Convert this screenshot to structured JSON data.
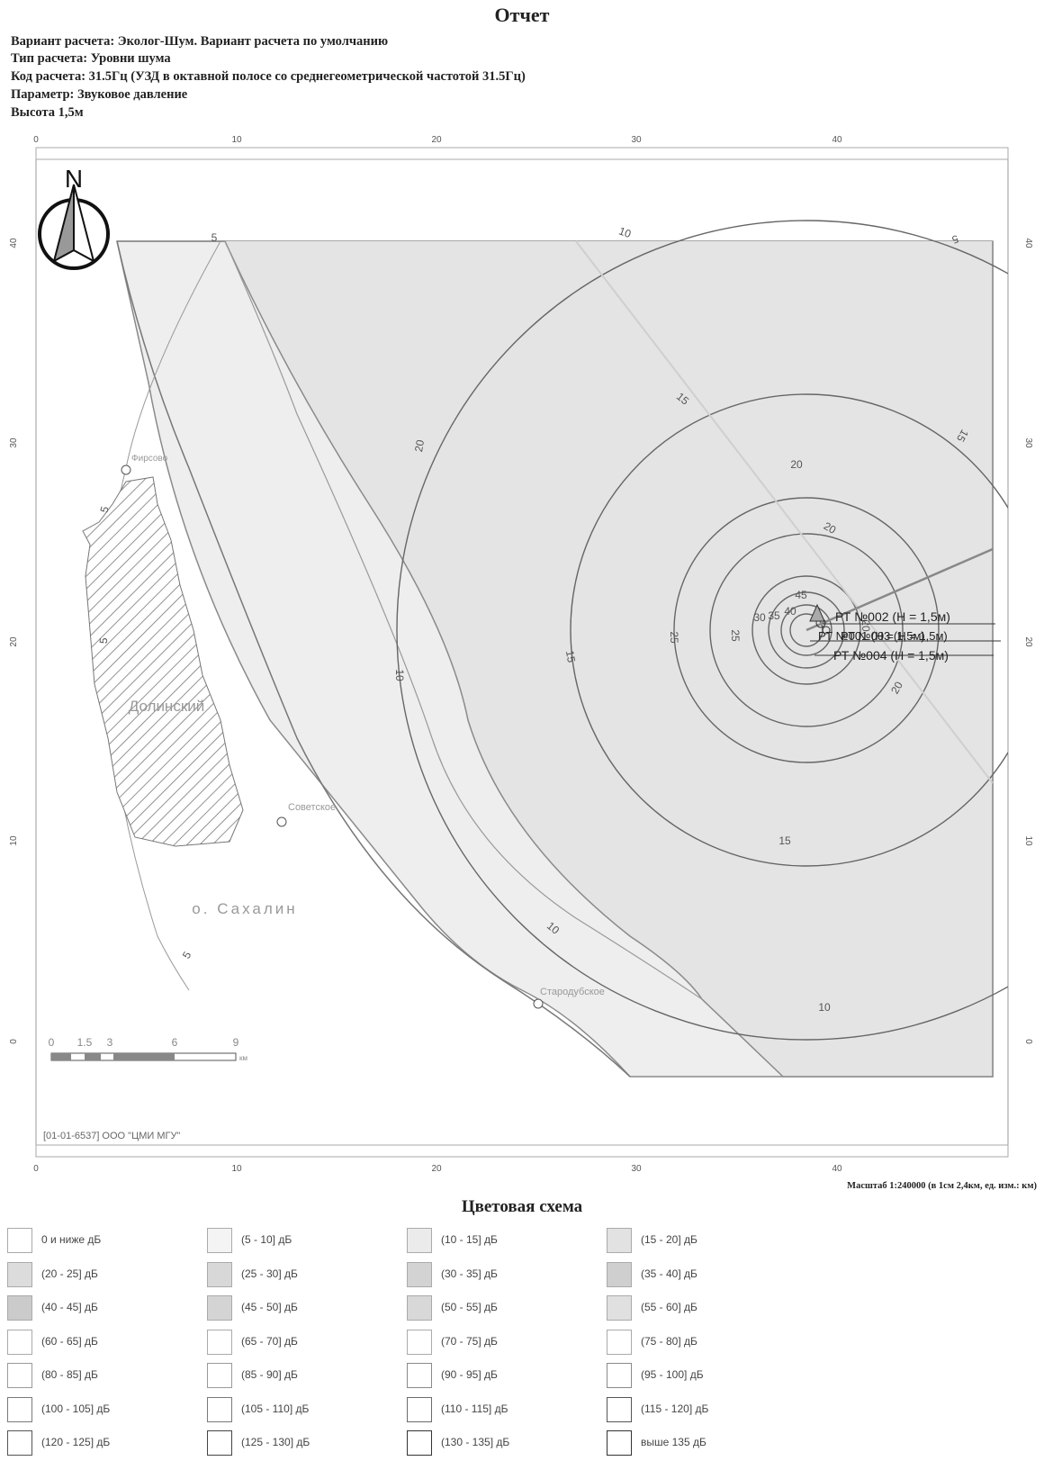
{
  "report": {
    "title": "Отчет",
    "variant_line": "Вариант расчета: Эколог-Шум. Вариант расчета по умолчанию",
    "type_line": "Тип расчета: Уровни шума",
    "code_line": "Код расчета: 31.5Гц (УЗД в октавной полосе со среднегеометрической частотой 31.5Гц)",
    "parameter_line": "Параметр: Звуковое давление",
    "height_line": "Высота 1,5м"
  },
  "map": {
    "north_label": "N",
    "axis_top_ticks": [
      "0",
      "10",
      "20",
      "30",
      "40"
    ],
    "axis_bottom_ticks": [
      "0",
      "10",
      "20",
      "30",
      "40"
    ],
    "axis_left_ticks": [
      "40",
      "30",
      "20",
      "10",
      "0"
    ],
    "axis_right_ticks": [
      "40",
      "30",
      "20",
      "10",
      "0"
    ],
    "contour_labels": [
      "5",
      "5",
      "5",
      "5",
      "5",
      "10",
      "10",
      "10",
      "10",
      "15",
      "15",
      "15",
      "15",
      "20",
      "20",
      "20",
      "20",
      "20",
      "25",
      "25",
      "30",
      "35",
      "40",
      "45"
    ],
    "place_labels": [
      "Фирсово",
      "Долинский",
      "Советское",
      "о. Сахалин",
      "Стародубское"
    ],
    "receptor_labels": [
      "РТ №002 (H = 1,5м)",
      "РТ №001 (H = 1,5м)",
      "РТ №003 (H = 1,5м)",
      "РТ №004 (H = 1,5м)"
    ],
    "scale_bar_ticks": [
      "0",
      "1.5",
      "3",
      "6",
      "9"
    ],
    "scale_bar_unit": "км",
    "license": "[01-01-6537] ООО \"ЦМИ МГУ\"",
    "scale_caption": "Масштаб 1:240000 (в 1см 2,4км, ед. изм.: км)",
    "colors": {
      "zone_light": "#ededed",
      "zone_mid": "#e2e2e2",
      "contour": "#555555",
      "frame": "#999999"
    }
  },
  "legend": {
    "title": "Цветовая схема",
    "items": [
      {
        "label": "0 и ниже дБ",
        "color": "#ffffff",
        "border": "#aaaaaa"
      },
      {
        "label": "(5 - 10] дБ",
        "color": "#f4f4f4",
        "border": "#aaaaaa"
      },
      {
        "label": "(10 - 15] дБ",
        "color": "#ebebeb",
        "border": "#aaaaaa"
      },
      {
        "label": "(15 - 20] дБ",
        "color": "#e2e2e2",
        "border": "#aaaaaa"
      },
      {
        "label": "(20 - 25] дБ",
        "color": "#dcdcdc",
        "border": "#aaaaaa"
      },
      {
        "label": "(25 - 30] дБ",
        "color": "#d8d8d8",
        "border": "#aaaaaa"
      },
      {
        "label": "(30 - 35] дБ",
        "color": "#d3d3d3",
        "border": "#aaaaaa"
      },
      {
        "label": "(35 - 40] дБ",
        "color": "#cfcfcf",
        "border": "#aaaaaa"
      },
      {
        "label": "(40 - 45] дБ",
        "color": "#cbcbcb",
        "border": "#aaaaaa"
      },
      {
        "label": "(45 - 50] дБ",
        "color": "#d4d4d4",
        "border": "#aaaaaa"
      },
      {
        "label": "(50 - 55] дБ",
        "color": "#d8d8d8",
        "border": "#aaaaaa"
      },
      {
        "label": "(55 - 60] дБ",
        "color": "#e0e0e0",
        "border": "#aaaaaa"
      },
      {
        "label": "(60 - 65] дБ",
        "color": "#ffffff",
        "border": "#aaaaaa"
      },
      {
        "label": "(65 - 70] дБ",
        "color": "#ffffff",
        "border": "#aaaaaa"
      },
      {
        "label": "(70 - 75] дБ",
        "color": "#ffffff",
        "border": "#aaaaaa"
      },
      {
        "label": "(75 - 80] дБ",
        "color": "#ffffff",
        "border": "#aaaaaa"
      },
      {
        "label": "(80 - 85] дБ",
        "color": "#ffffff",
        "border": "#9a9a9a"
      },
      {
        "label": "(85 - 90] дБ",
        "color": "#ffffff",
        "border": "#9a9a9a"
      },
      {
        "label": "(90 - 95] дБ",
        "color": "#ffffff",
        "border": "#8a8a8a"
      },
      {
        "label": "(95 - 100] дБ",
        "color": "#ffffff",
        "border": "#8a8a8a"
      },
      {
        "label": "(100 - 105] дБ",
        "color": "#ffffff",
        "border": "#7a7a7a"
      },
      {
        "label": "(105 - 110] дБ",
        "color": "#ffffff",
        "border": "#7a7a7a"
      },
      {
        "label": "(110 - 115] дБ",
        "color": "#ffffff",
        "border": "#6a6a6a"
      },
      {
        "label": "(115 - 120] дБ",
        "color": "#ffffff",
        "border": "#555555"
      },
      {
        "label": "(120 - 125] дБ",
        "color": "#ffffff",
        "border": "#555555"
      },
      {
        "label": "(125 - 130] дБ",
        "color": "#ffffff",
        "border": "#444444"
      },
      {
        "label": "(130 - 135] дБ",
        "color": "#ffffff",
        "border": "#333333"
      },
      {
        "label": "выше 135 дБ",
        "color": "#ffffff",
        "border": "#333333"
      }
    ]
  }
}
